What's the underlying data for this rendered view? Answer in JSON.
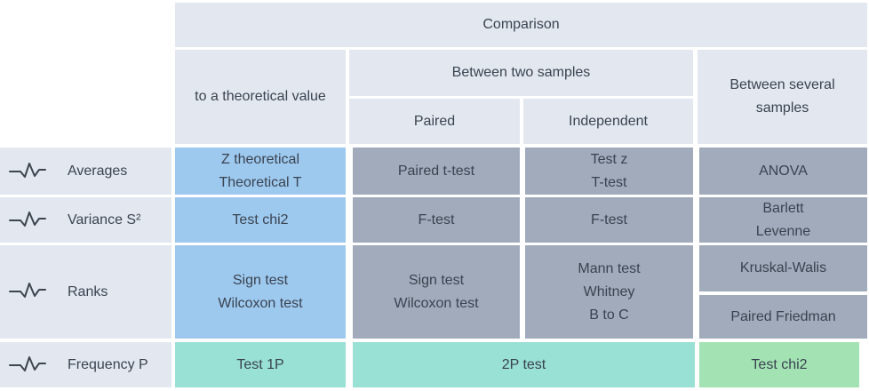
{
  "header": {
    "comparison": "Comparison",
    "to_theoretical": "to a theoretical value",
    "between_two": "Between two samples",
    "between_several": [
      "Between several",
      "samples"
    ],
    "paired": "Paired",
    "independent": "Independent"
  },
  "rows": [
    {
      "label": "Averages",
      "icon": "wave-icon"
    },
    {
      "label": "Variance S²",
      "icon": "wave-icon"
    },
    {
      "label": "Ranks",
      "icon": "wave-icon"
    },
    {
      "label": "Frequency P",
      "icon": "wave-icon"
    }
  ],
  "cells": {
    "averages": {
      "theoretical": [
        "Z theoretical",
        "Theoretical T"
      ],
      "paired": "Paired t-test",
      "independent": [
        "Test z",
        "T-test"
      ],
      "several": "ANOVA"
    },
    "variance": {
      "theoretical": "Test chi2",
      "paired": "F-test",
      "independent": "F-test",
      "several": [
        "Barlett",
        "Levenne"
      ]
    },
    "ranks": {
      "theoretical": [
        "Sign test",
        "Wilcoxon test"
      ],
      "paired": [
        "Sign test",
        "Wilcoxon test"
      ],
      "independent": [
        "Mann test",
        "Whitney",
        "B to C"
      ],
      "several_1": "Kruskal-Walis",
      "several_2": "Paired Friedman"
    },
    "frequency": {
      "theoretical": "Test 1P",
      "two_samples": "2P test",
      "several": "Test chi2"
    }
  },
  "colors": {
    "header_bg": "#e3e8f0",
    "theoretical_bg": "#9ec9ef",
    "two_samples_bg": "#a1abbb",
    "frequency_bg": "#99e0d5",
    "several_frequency_bg": "#a3e3b3",
    "text": "#3a4350"
  }
}
